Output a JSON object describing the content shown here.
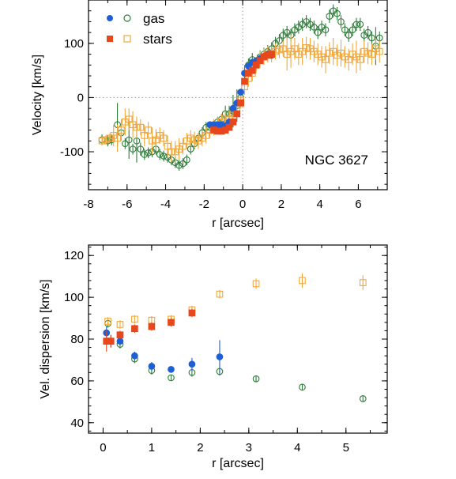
{
  "chart_data": [
    {
      "type": "scatter",
      "panel": "top",
      "xlabel": "r [arcsec]",
      "ylabel": "Velocity [km/s]",
      "xlim": [
        -8,
        7.5
      ],
      "ylim": [
        -170,
        180
      ],
      "xticks": [
        -8,
        -6,
        -4,
        -2,
        0,
        2,
        4,
        6
      ],
      "xtick_labels": [
        "-8",
        "-6",
        "-4",
        "-2",
        "0",
        "2",
        "4",
        "6"
      ],
      "yticks": [
        -100,
        0,
        100
      ],
      "ytick_labels": [
        "-100",
        "0",
        "100"
      ],
      "reference_lines": {
        "x": 0,
        "y": 0,
        "style": "dotted"
      },
      "annotation": "NGC 3627",
      "legend": {
        "position": "top-left",
        "entries": [
          "gas",
          "stars"
        ]
      },
      "colors": {
        "gas_filled": "#1f5fd6",
        "gas_open": "#2e7d3a",
        "stars_filled": "#e8471c",
        "stars_open": "#f2a83a"
      },
      "series": [
        {
          "name": "gas",
          "marker": "filled-circle",
          "x": [
            -1.7,
            -1.5,
            -1.3,
            -1.1,
            -0.9,
            -0.7,
            -0.5,
            -0.3,
            -0.1,
            0.1,
            0.3,
            0.5,
            0.7,
            0.9,
            1.1,
            1.3,
            1.5
          ],
          "y": [
            -50,
            -50,
            -50,
            -50,
            -52,
            -45,
            -20,
            -10,
            10,
            45,
            58,
            65,
            68,
            72,
            76,
            80,
            78
          ],
          "err": [
            6,
            6,
            6,
            6,
            6,
            6,
            6,
            6,
            6,
            6,
            6,
            6,
            6,
            6,
            6,
            6,
            6
          ]
        },
        {
          "name": "gas",
          "marker": "open-circle",
          "x": [
            -7.3,
            -7.0,
            -6.8,
            -6.5,
            -6.3,
            -6.1,
            -5.9,
            -5.7,
            -5.5,
            -5.3,
            -5.1,
            -4.9,
            -4.7,
            -4.5,
            -4.3,
            -4.1,
            -3.9,
            -3.7,
            -3.5,
            -3.3,
            -3.1,
            -2.9,
            -2.7,
            -2.5,
            -2.3,
            -2.1,
            -1.9,
            -1.7,
            -1.5,
            -1.3,
            -1.1,
            -0.9,
            -0.7,
            -0.5,
            -0.3,
            -0.1,
            0.1,
            0.3,
            0.5,
            0.7,
            0.9,
            1.1,
            1.3,
            1.5,
            1.7,
            1.9,
            2.1,
            2.3,
            2.5,
            2.7,
            2.9,
            3.1,
            3.3,
            3.5,
            3.7,
            3.9,
            4.1,
            4.3,
            4.5,
            4.7,
            4.9,
            5.1,
            5.3,
            5.5,
            5.7,
            5.9,
            6.1,
            6.3,
            6.5,
            6.7,
            6.9,
            7.1
          ],
          "y": [
            -78,
            -80,
            -78,
            -50,
            -65,
            -85,
            -78,
            -95,
            -80,
            -95,
            -105,
            -102,
            -100,
            -95,
            -105,
            -108,
            -110,
            -115,
            -120,
            -125,
            -122,
            -115,
            -95,
            -85,
            -75,
            -65,
            -55,
            -55,
            -50,
            -45,
            -40,
            -30,
            -30,
            -25,
            -15,
            0,
            45,
            60,
            70,
            62,
            75,
            80,
            85,
            90,
            100,
            105,
            115,
            120,
            115,
            125,
            130,
            135,
            140,
            135,
            130,
            120,
            130,
            125,
            150,
            160,
            155,
            140,
            125,
            115,
            125,
            135,
            135,
            115,
            120,
            110,
            95,
            110
          ],
          "err": [
            10,
            10,
            10,
            40,
            12,
            10,
            35,
            10,
            40,
            12,
            10,
            10,
            10,
            10,
            10,
            10,
            10,
            10,
            10,
            10,
            10,
            10,
            10,
            10,
            10,
            10,
            10,
            10,
            10,
            10,
            10,
            15,
            15,
            30,
            30,
            15,
            15,
            12,
            12,
            12,
            12,
            12,
            12,
            12,
            12,
            12,
            12,
            12,
            12,
            12,
            12,
            12,
            12,
            12,
            12,
            12,
            12,
            12,
            12,
            12,
            12,
            12,
            12,
            12,
            12,
            12,
            12,
            12,
            12,
            12,
            35,
            12
          ]
        },
        {
          "name": "stars",
          "marker": "filled-square",
          "x": [
            -1.5,
            -1.3,
            -1.1,
            -0.9,
            -0.7,
            -0.5,
            -0.3,
            -0.1,
            0.1,
            0.3,
            0.5,
            0.7,
            0.9,
            1.1,
            1.3,
            1.5
          ],
          "y": [
            -60,
            -62,
            -62,
            -60,
            -55,
            -45,
            -30,
            -10,
            30,
            45,
            50,
            60,
            68,
            75,
            78,
            80
          ],
          "err": [
            5,
            5,
            5,
            5,
            5,
            5,
            5,
            5,
            5,
            5,
            5,
            5,
            5,
            5,
            5,
            5
          ]
        },
        {
          "name": "stars",
          "marker": "open-square",
          "x": [
            -7.3,
            -7.1,
            -6.9,
            -6.7,
            -6.5,
            -6.3,
            -6.1,
            -5.9,
            -5.7,
            -5.5,
            -5.3,
            -5.1,
            -4.9,
            -4.7,
            -4.5,
            -4.3,
            -4.1,
            -3.9,
            -3.7,
            -3.5,
            -3.3,
            -3.1,
            -2.9,
            -2.7,
            -2.5,
            -2.3,
            -2.1,
            -1.9,
            -1.7,
            -1.5,
            -1.3,
            -1.1,
            -0.9,
            -0.7,
            -0.5,
            -0.3,
            -0.1,
            0.1,
            0.3,
            0.5,
            0.7,
            0.9,
            1.1,
            1.3,
            1.5,
            1.7,
            1.9,
            2.1,
            2.3,
            2.5,
            2.7,
            2.9,
            3.1,
            3.3,
            3.5,
            3.7,
            3.9,
            4.1,
            4.3,
            4.5,
            4.7,
            4.9,
            5.1,
            5.3,
            5.5,
            5.7,
            5.9,
            6.1,
            6.3,
            6.5,
            6.7,
            6.9,
            7.1
          ],
          "y": [
            -80,
            -78,
            -75,
            -70,
            -75,
            -60,
            -45,
            -40,
            -50,
            -55,
            -55,
            -70,
            -60,
            -80,
            -78,
            -70,
            -75,
            -90,
            -100,
            -100,
            -95,
            -90,
            -80,
            -75,
            -78,
            -80,
            -75,
            -70,
            -60,
            -55,
            -50,
            -45,
            -40,
            -40,
            -30,
            -20,
            -5,
            20,
            35,
            45,
            60,
            70,
            75,
            80,
            80,
            85,
            88,
            90,
            80,
            85,
            90,
            80,
            85,
            92,
            90,
            85,
            80,
            75,
            70,
            82,
            85,
            78,
            82,
            75,
            70,
            80,
            75,
            70,
            85,
            82,
            80,
            90,
            85
          ],
          "err": [
            8,
            8,
            8,
            20,
            25,
            20,
            25,
            20,
            25,
            20,
            15,
            20,
            15,
            25,
            20,
            15,
            15,
            20,
            20,
            20,
            20,
            15,
            15,
            15,
            15,
            15,
            15,
            15,
            15,
            15,
            15,
            15,
            15,
            15,
            15,
            15,
            15,
            15,
            15,
            15,
            15,
            15,
            15,
            15,
            15,
            15,
            15,
            15,
            30,
            30,
            20,
            20,
            25,
            20,
            20,
            20,
            20,
            20,
            25,
            20,
            25,
            20,
            25,
            20,
            20,
            20,
            30,
            20,
            20,
            20,
            20,
            20,
            20
          ]
        }
      ]
    },
    {
      "type": "scatter",
      "panel": "bottom",
      "xlabel": "r [arcsec]",
      "ylabel": "Vel. dispersion [km/s]",
      "xlim": [
        -0.3,
        5.85
      ],
      "ylim": [
        35,
        125
      ],
      "xticks": [
        0,
        1,
        2,
        3,
        4,
        5
      ],
      "xtick_labels": [
        "0",
        "1",
        "2",
        "3",
        "4",
        "5"
      ],
      "yticks": [
        40,
        60,
        80,
        100,
        120
      ],
      "ytick_labels": [
        "40",
        "60",
        "80",
        "100",
        "120"
      ],
      "series": [
        {
          "name": "gas",
          "marker": "filled-circle",
          "x": [
            0.07,
            0.16,
            0.35,
            0.65,
            1.0,
            1.4,
            1.83,
            2.4
          ],
          "y": [
            83,
            79,
            79,
            72,
            67,
            65.5,
            68,
            71.5
          ],
          "err": [
            3,
            3,
            2,
            2,
            2,
            1.5,
            3,
            8
          ]
        },
        {
          "name": "gas",
          "marker": "open-circle",
          "x": [
            0.1,
            0.35,
            0.65,
            1.0,
            1.4,
            1.83,
            2.4,
            3.15,
            4.1,
            5.35
          ],
          "y": [
            87.5,
            77.5,
            70.5,
            65,
            61.5,
            64,
            64.5,
            61,
            57,
            51.5
          ],
          "err": [
            2,
            2,
            2,
            2,
            1.5,
            2,
            2,
            1.5,
            1.5,
            1.5
          ]
        },
        {
          "name": "stars",
          "marker": "filled-square",
          "x": [
            0.07,
            0.16,
            0.35,
            0.65,
            1.0,
            1.4,
            1.83
          ],
          "y": [
            79,
            79,
            82,
            85,
            86,
            88,
            92.5
          ],
          "err": [
            5,
            3,
            2,
            2,
            2,
            2,
            2
          ]
        },
        {
          "name": "stars",
          "marker": "open-square",
          "x": [
            0.1,
            0.35,
            0.65,
            1.0,
            1.4,
            1.83,
            2.4,
            3.15,
            4.1,
            5.35
          ],
          "y": [
            88.5,
            87,
            89.5,
            89,
            89.5,
            94,
            101.5,
            106.5,
            108,
            107
          ],
          "err": [
            2,
            2,
            2,
            2,
            2,
            2,
            2,
            2.5,
            3.5,
            3.5
          ]
        }
      ]
    }
  ]
}
